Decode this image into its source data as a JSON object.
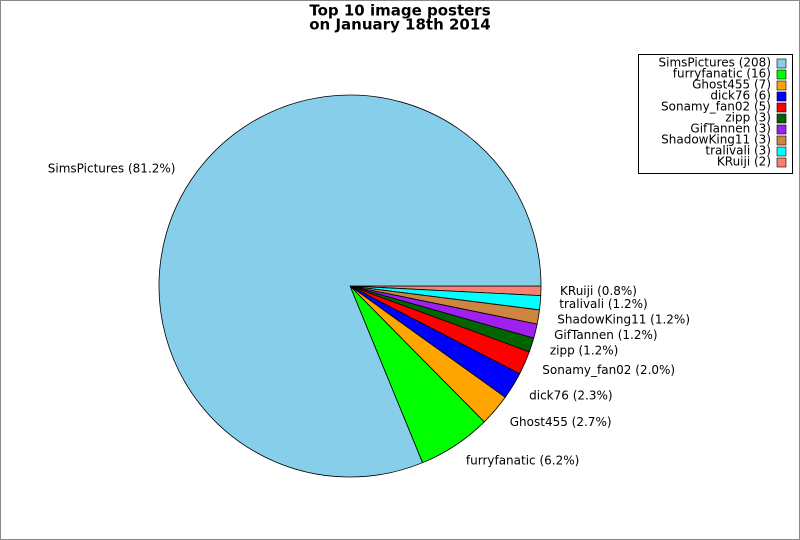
{
  "chart_data": {
    "type": "pie",
    "title": [
      "Top 10 image posters",
      "on January 18th 2014"
    ],
    "values": [
      81.2,
      6.2,
      2.7,
      2.3,
      2.0,
      1.2,
      1.2,
      1.2,
      1.2,
      0.8
    ],
    "value_labels": [
      "SimsPictures (81.2%)",
      "furryfanatic (6.2%)",
      "Ghost455 (2.7%)",
      "dick76 (2.3%)",
      "Sonamy_fan02 (2.0%)",
      "zipp (1.2%)",
      "GifTannen (1.2%)",
      "ShadowKing11 (1.2%)",
      "tralivali (1.2%)",
      "KRuiji (0.8%)"
    ],
    "colors": [
      "#87ceeb",
      "#00ff00",
      "#ffa500",
      "#0000ff",
      "#ff0000",
      "#006400",
      "#a020f0",
      "#cd853f",
      "#00ffff",
      "#fa8072"
    ],
    "legend": {
      "position": "upper right",
      "labels": [
        "SimsPictures (208)",
        "furryfanatic (16)",
        "Ghost455 (7)",
        "dick76 (6)",
        "Sonamy_fan02 (5)",
        "zipp (3)",
        "GifTannen (3)",
        "ShadowKing11 (3)",
        "tralivali (3)",
        "KRuiji (2)"
      ]
    }
  }
}
